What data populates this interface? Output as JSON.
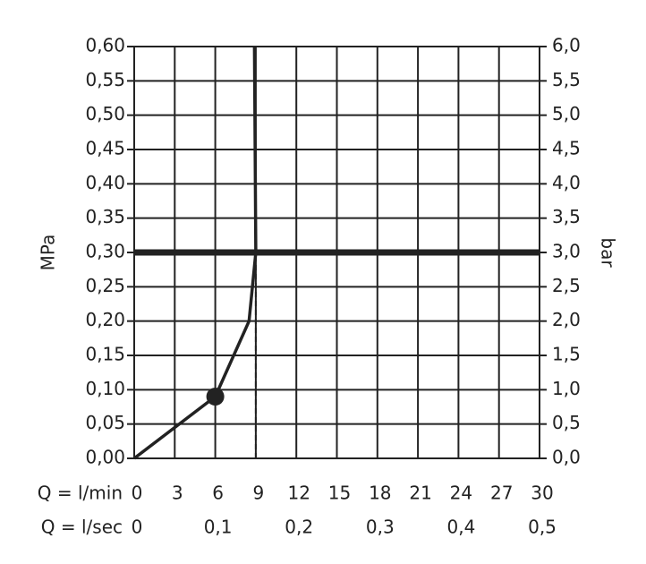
{
  "chart_data": {
    "type": "line",
    "y_label": "MPa",
    "y2_label": "bar",
    "x_label": "Q = l/min",
    "x2_label": "Q = l/sec",
    "xlim": [
      0,
      30
    ],
    "xticks": [
      0,
      3,
      6,
      9,
      12,
      15,
      18,
      21,
      24,
      27,
      30
    ],
    "x2lim": [
      0,
      0.5
    ],
    "x2ticks": [
      0,
      {
        "value": 0.1,
        "label": "0,1"
      },
      {
        "value": 0.2,
        "label": "0,2"
      },
      {
        "value": 0.3,
        "label": "0,3"
      },
      {
        "value": 0.4,
        "label": "0,4"
      },
      {
        "value": 0.5,
        "label": "0,5"
      }
    ],
    "ylim": [
      0,
      0.6
    ],
    "yticks": [
      {
        "value": 0,
        "label": "0,00"
      },
      {
        "value": 0.05,
        "label": "0,05"
      },
      {
        "value": 0.1,
        "label": "0,10"
      },
      {
        "value": 0.15,
        "label": "0,15"
      },
      {
        "value": 0.2,
        "label": "0,20"
      },
      {
        "value": 0.25,
        "label": "0,25"
      },
      {
        "value": 0.3,
        "label": "0,30"
      },
      {
        "value": 0.35,
        "label": "0,35"
      },
      {
        "value": 0.4,
        "label": "0,40"
      },
      {
        "value": 0.45,
        "label": "0,45"
      },
      {
        "value": 0.5,
        "label": "0,50"
      },
      {
        "value": 0.55,
        "label": "0,55"
      },
      {
        "value": 0.6,
        "label": "0,60"
      }
    ],
    "y2lim": [
      0,
      6
    ],
    "y2ticks": [
      {
        "value": 0,
        "label": "0,0"
      },
      {
        "value": 0.5,
        "label": "0,5"
      },
      {
        "value": 1,
        "label": "1,0"
      },
      {
        "value": 1.5,
        "label": "1,5"
      },
      {
        "value": 2,
        "label": "2,0"
      },
      {
        "value": 2.5,
        "label": "2,5"
      },
      {
        "value": 3,
        "label": "3,0"
      },
      {
        "value": 3.5,
        "label": "3,5"
      },
      {
        "value": 4,
        "label": "4,0"
      },
      {
        "value": 4.5,
        "label": "4,5"
      },
      {
        "value": 5,
        "label": "5,0"
      },
      {
        "value": 5.5,
        "label": "5,5"
      },
      {
        "value": 6,
        "label": "6,0"
      }
    ],
    "grid": true,
    "series": [
      {
        "color": "#222222",
        "x": [
          0,
          6,
          8.5,
          9,
          8.9
        ],
        "values": [
          0,
          0.09,
          0.2,
          0.3,
          0.6
        ]
      }
    ],
    "marker": {
      "x": 6,
      "y": 0.09
    },
    "reference_lines": {
      "x": 9,
      "y": 0.3
    }
  }
}
